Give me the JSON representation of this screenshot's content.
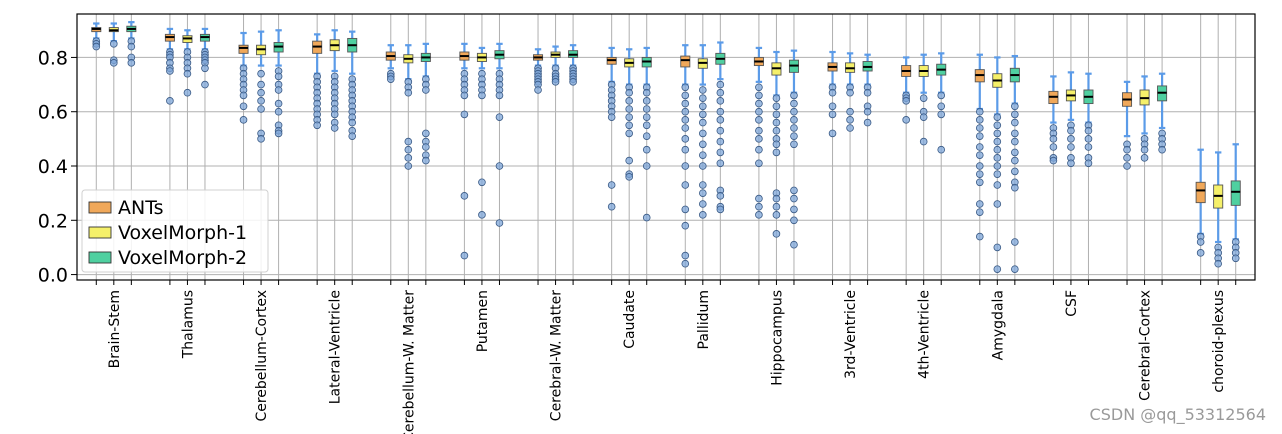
{
  "chart_data": {
    "type": "box",
    "categories": [
      "Brain-Stem",
      "Thalamus",
      "Cerebellum-Cortex",
      "Lateral-Ventricle",
      "Cerebellum-W. Matter",
      "Putamen",
      "Cerebral-W. Matter",
      "Caudate",
      "Pallidum",
      "Hippocampus",
      "3rd-Ventricle",
      "4th-Ventricle",
      "Amygdala",
      "CSF",
      "Cerebral-Cortex",
      "choroid-plexus"
    ],
    "ylim": [
      -0.02,
      0.96
    ],
    "yticks": [
      0.0,
      0.2,
      0.4,
      0.6,
      0.8
    ],
    "ytick_labels": [
      "0.0",
      "0.2",
      "0.4",
      "0.6",
      "0.8"
    ],
    "grid": true,
    "legend_position": "lower-left",
    "series": [
      {
        "name": "ANTs",
        "color": "#f0a85a",
        "boxes": [
          {
            "q1": 0.895,
            "median": 0.905,
            "q3": 0.91,
            "whislo": 0.87,
            "whishi": 0.925,
            "outliers": [
              0.86,
              0.85,
              0.84
            ]
          },
          {
            "q1": 0.86,
            "median": 0.875,
            "q3": 0.885,
            "whislo": 0.83,
            "whishi": 0.905,
            "outliers": [
              0.82,
              0.81,
              0.8,
              0.78,
              0.76,
              0.75,
              0.64
            ]
          },
          {
            "q1": 0.815,
            "median": 0.835,
            "q3": 0.845,
            "whislo": 0.77,
            "whishi": 0.89,
            "outliers": [
              0.76,
              0.74,
              0.72,
              0.7,
              0.68,
              0.66,
              0.62,
              0.57
            ]
          },
          {
            "q1": 0.815,
            "median": 0.84,
            "q3": 0.86,
            "whislo": 0.74,
            "whishi": 0.885,
            "outliers": [
              0.73,
              0.71,
              0.69,
              0.67,
              0.65,
              0.63,
              0.61,
              0.59,
              0.57,
              0.55
            ]
          },
          {
            "q1": 0.79,
            "median": 0.805,
            "q3": 0.82,
            "whislo": 0.76,
            "whishi": 0.845,
            "outliers": [
              0.74,
              0.73,
              0.72
            ]
          },
          {
            "q1": 0.79,
            "median": 0.805,
            "q3": 0.82,
            "whislo": 0.76,
            "whishi": 0.85,
            "outliers": [
              0.74,
              0.72,
              0.7,
              0.68,
              0.66,
              0.59,
              0.29,
              0.07
            ]
          },
          {
            "q1": 0.79,
            "median": 0.8,
            "q3": 0.81,
            "whislo": 0.77,
            "whishi": 0.83,
            "outliers": [
              0.76,
              0.75,
              0.74,
              0.73,
              0.72,
              0.71,
              0.7,
              0.68
            ]
          },
          {
            "q1": 0.775,
            "median": 0.79,
            "q3": 0.8,
            "whislo": 0.71,
            "whishi": 0.835,
            "outliers": [
              0.7,
              0.68,
              0.66,
              0.64,
              0.62,
              0.6,
              0.58,
              0.33,
              0.25
            ]
          },
          {
            "q1": 0.765,
            "median": 0.79,
            "q3": 0.805,
            "whislo": 0.7,
            "whishi": 0.845,
            "outliers": [
              0.69,
              0.66,
              0.63,
              0.6,
              0.57,
              0.54,
              0.5,
              0.46,
              0.4,
              0.33,
              0.24,
              0.18,
              0.07,
              0.04
            ]
          },
          {
            "q1": 0.77,
            "median": 0.785,
            "q3": 0.8,
            "whislo": 0.71,
            "whishi": 0.835,
            "outliers": [
              0.69,
              0.66,
              0.63,
              0.6,
              0.57,
              0.53,
              0.5,
              0.46,
              0.41,
              0.28,
              0.25,
              0.22
            ]
          },
          {
            "q1": 0.75,
            "median": 0.765,
            "q3": 0.78,
            "whislo": 0.7,
            "whishi": 0.82,
            "outliers": [
              0.69,
              0.67,
              0.62,
              0.59,
              0.52
            ]
          },
          {
            "q1": 0.73,
            "median": 0.75,
            "q3": 0.77,
            "whislo": 0.67,
            "whishi": 0.8,
            "outliers": [
              0.66,
              0.65,
              0.64,
              0.57
            ]
          },
          {
            "q1": 0.71,
            "median": 0.735,
            "q3": 0.755,
            "whislo": 0.61,
            "whishi": 0.81,
            "outliers": [
              0.6,
              0.57,
              0.54,
              0.51,
              0.47,
              0.44,
              0.4,
              0.37,
              0.34,
              0.26,
              0.23,
              0.14
            ]
          },
          {
            "q1": 0.63,
            "median": 0.655,
            "q3": 0.675,
            "whislo": 0.56,
            "whishi": 0.73,
            "outliers": [
              0.54,
              0.52,
              0.5,
              0.47,
              0.43,
              0.42
            ]
          },
          {
            "q1": 0.62,
            "median": 0.645,
            "q3": 0.67,
            "whislo": 0.51,
            "whishi": 0.71,
            "outliers": [
              0.48,
              0.46,
              0.43,
              0.4
            ]
          },
          {
            "q1": 0.265,
            "median": 0.31,
            "q3": 0.34,
            "whislo": 0.15,
            "whishi": 0.46,
            "outliers": [
              0.14,
              0.12,
              0.08
            ]
          }
        ]
      },
      {
        "name": "VoxelMorph-1",
        "color": "#f5f06a",
        "boxes": [
          {
            "q1": 0.895,
            "median": 0.9,
            "q3": 0.91,
            "whislo": 0.86,
            "whishi": 0.925,
            "outliers": [
              0.85,
              0.79,
              0.78
            ]
          },
          {
            "q1": 0.855,
            "median": 0.87,
            "q3": 0.88,
            "whislo": 0.83,
            "whishi": 0.9,
            "outliers": [
              0.82,
              0.8,
              0.78,
              0.76,
              0.74,
              0.67
            ]
          },
          {
            "q1": 0.81,
            "median": 0.83,
            "q3": 0.845,
            "whislo": 0.77,
            "whishi": 0.895,
            "outliers": [
              0.74,
              0.7,
              0.67,
              0.64,
              0.61,
              0.52,
              0.5
            ]
          },
          {
            "q1": 0.825,
            "median": 0.845,
            "q3": 0.865,
            "whislo": 0.75,
            "whishi": 0.9,
            "outliers": [
              0.73,
              0.71,
              0.69,
              0.67,
              0.65,
              0.63,
              0.61,
              0.59,
              0.56,
              0.54
            ]
          },
          {
            "q1": 0.78,
            "median": 0.795,
            "q3": 0.81,
            "whislo": 0.72,
            "whishi": 0.845,
            "outliers": [
              0.71,
              0.69,
              0.67,
              0.49,
              0.46,
              0.43,
              0.4
            ]
          },
          {
            "q1": 0.785,
            "median": 0.8,
            "q3": 0.815,
            "whislo": 0.76,
            "whishi": 0.835,
            "outliers": [
              0.74,
              0.72,
              0.7,
              0.68,
              0.66,
              0.34,
              0.22
            ]
          },
          {
            "q1": 0.8,
            "median": 0.81,
            "q3": 0.82,
            "whislo": 0.77,
            "whishi": 0.84,
            "outliers": [
              0.76,
              0.74,
              0.73,
              0.72,
              0.71
            ]
          },
          {
            "q1": 0.765,
            "median": 0.78,
            "q3": 0.795,
            "whislo": 0.7,
            "whishi": 0.83,
            "outliers": [
              0.69,
              0.67,
              0.64,
              0.61,
              0.58,
              0.55,
              0.52,
              0.42,
              0.37,
              0.36
            ]
          },
          {
            "q1": 0.76,
            "median": 0.78,
            "q3": 0.795,
            "whislo": 0.7,
            "whishi": 0.845,
            "outliers": [
              0.68,
              0.65,
              0.62,
              0.59,
              0.56,
              0.52,
              0.48,
              0.44,
              0.4,
              0.33,
              0.3,
              0.26,
              0.22
            ]
          },
          {
            "q1": 0.735,
            "median": 0.76,
            "q3": 0.78,
            "whislo": 0.66,
            "whishi": 0.82,
            "outliers": [
              0.65,
              0.62,
              0.59,
              0.56,
              0.53,
              0.5,
              0.48,
              0.45,
              0.3,
              0.28,
              0.25,
              0.22,
              0.15
            ]
          },
          {
            "q1": 0.745,
            "median": 0.76,
            "q3": 0.78,
            "whislo": 0.7,
            "whishi": 0.815,
            "outliers": [
              0.69,
              0.67,
              0.6,
              0.57,
              0.54
            ]
          },
          {
            "q1": 0.73,
            "median": 0.75,
            "q3": 0.77,
            "whislo": 0.67,
            "whishi": 0.81,
            "outliers": [
              0.65,
              0.6,
              0.58,
              0.49
            ]
          },
          {
            "q1": 0.69,
            "median": 0.715,
            "q3": 0.74,
            "whislo": 0.59,
            "whishi": 0.8,
            "outliers": [
              0.58,
              0.55,
              0.52,
              0.49,
              0.46,
              0.43,
              0.4,
              0.37,
              0.33,
              0.26,
              0.1,
              0.02
            ]
          },
          {
            "q1": 0.64,
            "median": 0.66,
            "q3": 0.68,
            "whislo": 0.57,
            "whishi": 0.745,
            "outliers": [
              0.55,
              0.53,
              0.5,
              0.47,
              0.43,
              0.41
            ]
          },
          {
            "q1": 0.625,
            "median": 0.65,
            "q3": 0.68,
            "whislo": 0.52,
            "whishi": 0.73,
            "outliers": [
              0.5,
              0.48,
              0.46,
              0.43
            ]
          },
          {
            "q1": 0.245,
            "median": 0.29,
            "q3": 0.33,
            "whislo": 0.12,
            "whishi": 0.45,
            "outliers": [
              0.1,
              0.08,
              0.06,
              0.04
            ]
          }
        ]
      },
      {
        "name": "VoxelMorph-2",
        "color": "#4fd0a0",
        "boxes": [
          {
            "q1": 0.895,
            "median": 0.905,
            "q3": 0.915,
            "whislo": 0.87,
            "whishi": 0.93,
            "outliers": [
              0.86,
              0.84,
              0.8,
              0.78
            ]
          },
          {
            "q1": 0.86,
            "median": 0.875,
            "q3": 0.885,
            "whislo": 0.83,
            "whishi": 0.905,
            "outliers": [
              0.82,
              0.81,
              0.8,
              0.79,
              0.78,
              0.76,
              0.7
            ]
          },
          {
            "q1": 0.82,
            "median": 0.84,
            "q3": 0.855,
            "whislo": 0.77,
            "whishi": 0.9,
            "outliers": [
              0.75,
              0.73,
              0.7,
              0.68,
              0.63,
              0.6,
              0.55,
              0.53,
              0.52
            ]
          },
          {
            "q1": 0.82,
            "median": 0.845,
            "q3": 0.87,
            "whislo": 0.74,
            "whishi": 0.895,
            "outliers": [
              0.72,
              0.7,
              0.68,
              0.66,
              0.64,
              0.62,
              0.6,
              0.58,
              0.56,
              0.53,
              0.51
            ]
          },
          {
            "q1": 0.785,
            "median": 0.8,
            "q3": 0.815,
            "whislo": 0.73,
            "whishi": 0.85,
            "outliers": [
              0.72,
              0.7,
              0.68,
              0.52,
              0.49,
              0.47,
              0.44,
              0.42
            ]
          },
          {
            "q1": 0.795,
            "median": 0.81,
            "q3": 0.825,
            "whislo": 0.76,
            "whishi": 0.85,
            "outliers": [
              0.74,
              0.72,
              0.7,
              0.68,
              0.66,
              0.58,
              0.4,
              0.19
            ]
          },
          {
            "q1": 0.8,
            "median": 0.81,
            "q3": 0.825,
            "whislo": 0.77,
            "whishi": 0.845,
            "outliers": [
              0.76,
              0.75,
              0.74,
              0.73,
              0.72,
              0.71
            ]
          },
          {
            "q1": 0.765,
            "median": 0.785,
            "q3": 0.8,
            "whislo": 0.7,
            "whishi": 0.835,
            "outliers": [
              0.69,
              0.67,
              0.64,
              0.61,
              0.58,
              0.55,
              0.51,
              0.46,
              0.4,
              0.21
            ]
          },
          {
            "q1": 0.775,
            "median": 0.795,
            "q3": 0.815,
            "whislo": 0.72,
            "whishi": 0.855,
            "outliers": [
              0.7,
              0.67,
              0.64,
              0.6,
              0.57,
              0.53,
              0.49,
              0.45,
              0.41,
              0.31,
              0.29,
              0.25,
              0.24
            ]
          },
          {
            "q1": 0.745,
            "median": 0.77,
            "q3": 0.79,
            "whislo": 0.67,
            "whishi": 0.825,
            "outliers": [
              0.66,
              0.63,
              0.6,
              0.57,
              0.54,
              0.51,
              0.48,
              0.31,
              0.28,
              0.24,
              0.2,
              0.11
            ]
          },
          {
            "q1": 0.75,
            "median": 0.765,
            "q3": 0.785,
            "whislo": 0.7,
            "whishi": 0.81,
            "outliers": [
              0.69,
              0.67,
              0.62,
              0.6,
              0.56
            ]
          },
          {
            "q1": 0.735,
            "median": 0.755,
            "q3": 0.775,
            "whislo": 0.67,
            "whishi": 0.815,
            "outliers": [
              0.66,
              0.62,
              0.59,
              0.46
            ]
          },
          {
            "q1": 0.71,
            "median": 0.735,
            "q3": 0.76,
            "whislo": 0.63,
            "whishi": 0.805,
            "outliers": [
              0.62,
              0.59,
              0.56,
              0.52,
              0.49,
              0.45,
              0.42,
              0.38,
              0.34,
              0.32,
              0.12,
              0.02
            ]
          },
          {
            "q1": 0.63,
            "median": 0.655,
            "q3": 0.68,
            "whislo": 0.56,
            "whishi": 0.74,
            "outliers": [
              0.55,
              0.53,
              0.5,
              0.47,
              0.43,
              0.41
            ]
          },
          {
            "q1": 0.64,
            "median": 0.67,
            "q3": 0.695,
            "whislo": 0.54,
            "whishi": 0.74,
            "outliers": [
              0.52,
              0.5,
              0.48,
              0.46
            ]
          },
          {
            "q1": 0.255,
            "median": 0.305,
            "q3": 0.345,
            "whislo": 0.13,
            "whishi": 0.48,
            "outliers": [
              0.12,
              0.1,
              0.08,
              0.06
            ]
          }
        ]
      }
    ],
    "whisker_color": "#5b9be8",
    "flier_color": "#7ea6d8",
    "median_color": "#000000"
  },
  "watermark": "CSDN @qq_53312564"
}
